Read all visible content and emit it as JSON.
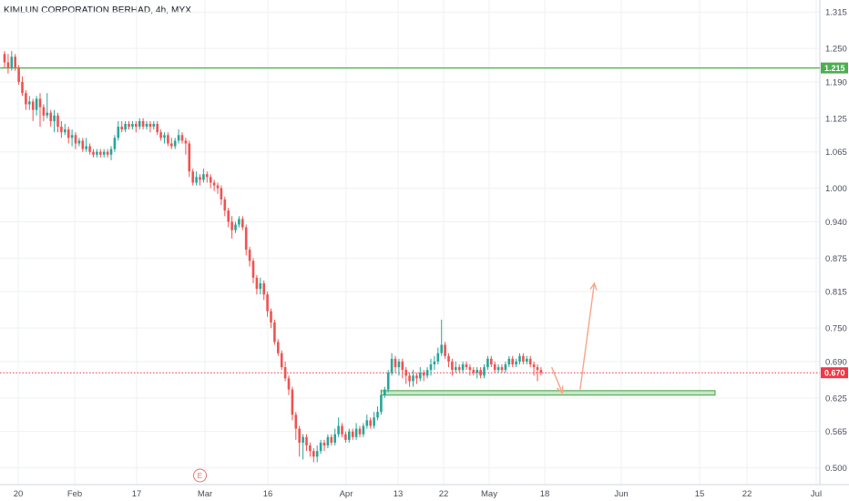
{
  "header": {
    "title": "KIMLUN CORPORATION BERHAD, 4h, MYX"
  },
  "colors": {
    "up": "#26a69a",
    "down": "#ef5350",
    "grid": "#eef0f3",
    "resistance": "#4caf50",
    "current": "#f23645",
    "zone_fill": "#c8e6c9",
    "zone_stroke": "#43a047",
    "arrow": "#f7a58a",
    "event_badge": "#e57373"
  },
  "chart_data": {
    "type": "candlestick",
    "title": "KIMLUN CORPORATION BERHAD, 4h, MYX",
    "xlabel": "",
    "ylabel": "",
    "ylim": [
      0.47,
      1.33
    ],
    "y_ticks": [
      "1.315",
      "1.250",
      "1.190",
      "1.125",
      "1.065",
      "1.000",
      "0.940",
      "0.875",
      "0.815",
      "0.750",
      "0.690",
      "0.625",
      "0.565",
      "0.500"
    ],
    "x_ticks": [
      "20",
      "Feb",
      "17",
      "Mar",
      "16",
      "Apr",
      "13",
      "22",
      "May",
      "18",
      "Jun",
      "15",
      "22",
      "Jul"
    ],
    "resistance_level": {
      "value": 1.215,
      "label": "1.215"
    },
    "current_price": {
      "value": 0.67,
      "label": "0.670"
    },
    "support_zone": {
      "top": 0.638,
      "bottom": 0.63,
      "start_bar": 106,
      "end_bar": 200
    },
    "event_marker": {
      "label": "E",
      "bar": 55
    },
    "projection_arrows": [
      {
        "from": [
          154,
          0.68
        ],
        "to": [
          157,
          0.634
        ]
      },
      {
        "from": [
          162,
          0.64
        ],
        "to": [
          166,
          0.83
        ]
      }
    ],
    "grid": true,
    "candles": [
      [
        1.24,
        1.225,
        1.245,
        1.215
      ],
      [
        1.225,
        1.215,
        1.24,
        1.205
      ],
      [
        1.215,
        1.235,
        1.245,
        1.21
      ],
      [
        1.235,
        1.215,
        1.24,
        1.21
      ],
      [
        1.215,
        1.19,
        1.22,
        1.185
      ],
      [
        1.19,
        1.17,
        1.2,
        1.165
      ],
      [
        1.17,
        1.15,
        1.175,
        1.14
      ],
      [
        1.15,
        1.155,
        1.165,
        1.14
      ],
      [
        1.155,
        1.14,
        1.16,
        1.12
      ],
      [
        1.14,
        1.16,
        1.165,
        1.13
      ],
      [
        1.16,
        1.145,
        1.17,
        1.11
      ],
      [
        1.145,
        1.13,
        1.15,
        1.12
      ],
      [
        1.13,
        1.135,
        1.17,
        1.125
      ],
      [
        1.135,
        1.12,
        1.14,
        1.11
      ],
      [
        1.12,
        1.13,
        1.14,
        1.1
      ],
      [
        1.13,
        1.11,
        1.135,
        1.1
      ],
      [
        1.11,
        1.1,
        1.12,
        1.09
      ],
      [
        1.1,
        1.105,
        1.115,
        1.095
      ],
      [
        1.105,
        1.09,
        1.11,
        1.08
      ],
      [
        1.09,
        1.095,
        1.105,
        1.075
      ],
      [
        1.095,
        1.08,
        1.1,
        1.07
      ],
      [
        1.08,
        1.085,
        1.09,
        1.075
      ],
      [
        1.085,
        1.07,
        1.09,
        1.065
      ],
      [
        1.07,
        1.075,
        1.09,
        1.065
      ],
      [
        1.075,
        1.065,
        1.08,
        1.06
      ],
      [
        1.065,
        1.06,
        1.07,
        1.055
      ],
      [
        1.06,
        1.065,
        1.07,
        1.055
      ],
      [
        1.065,
        1.06,
        1.07,
        1.055
      ],
      [
        1.06,
        1.065,
        1.07,
        1.055
      ],
      [
        1.065,
        1.06,
        1.07,
        1.055
      ],
      [
        1.06,
        1.07,
        1.075,
        1.05
      ],
      [
        1.07,
        1.09,
        1.095,
        1.065
      ],
      [
        1.09,
        1.11,
        1.12,
        1.085
      ],
      [
        1.11,
        1.105,
        1.12,
        1.1
      ],
      [
        1.105,
        1.115,
        1.12,
        1.1
      ],
      [
        1.115,
        1.11,
        1.12,
        1.105
      ],
      [
        1.11,
        1.115,
        1.12,
        1.105
      ],
      [
        1.115,
        1.11,
        1.12,
        1.1
      ],
      [
        1.11,
        1.12,
        1.125,
        1.105
      ],
      [
        1.12,
        1.11,
        1.125,
        1.105
      ],
      [
        1.11,
        1.115,
        1.12,
        1.105
      ],
      [
        1.115,
        1.11,
        1.12,
        1.1
      ],
      [
        1.11,
        1.115,
        1.12,
        1.105
      ],
      [
        1.115,
        1.1,
        1.12,
        1.095
      ],
      [
        1.1,
        1.09,
        1.105,
        1.085
      ],
      [
        1.09,
        1.095,
        1.1,
        1.08
      ],
      [
        1.095,
        1.08,
        1.1,
        1.075
      ],
      [
        1.08,
        1.075,
        1.09,
        1.07
      ],
      [
        1.075,
        1.085,
        1.09,
        1.07
      ],
      [
        1.085,
        1.095,
        1.105,
        1.08
      ],
      [
        1.095,
        1.085,
        1.1,
        1.08
      ],
      [
        1.085,
        1.08,
        1.09,
        1.06
      ],
      [
        1.08,
        1.03,
        1.085,
        1.02
      ],
      [
        1.03,
        1.01,
        1.035,
        1.005
      ],
      [
        1.01,
        1.02,
        1.03,
        1.005
      ],
      [
        1.02,
        1.015,
        1.025,
        1.005
      ],
      [
        1.015,
        1.025,
        1.035,
        1.01
      ],
      [
        1.025,
        1.02,
        1.03,
        1.01
      ],
      [
        1.02,
        1.01,
        1.025,
        1.0
      ],
      [
        1.01,
        1.005,
        1.015,
        0.995
      ],
      [
        1.005,
        1.0,
        1.01,
        0.99
      ],
      [
        1.0,
        0.98,
        1.005,
        0.97
      ],
      [
        0.98,
        0.96,
        0.985,
        0.95
      ],
      [
        0.96,
        0.94,
        0.965,
        0.93
      ],
      [
        0.94,
        0.925,
        0.95,
        0.91
      ],
      [
        0.925,
        0.935,
        0.94,
        0.92
      ],
      [
        0.935,
        0.945,
        0.95,
        0.93
      ],
      [
        0.945,
        0.93,
        0.95,
        0.925
      ],
      [
        0.93,
        0.89,
        0.935,
        0.88
      ],
      [
        0.89,
        0.87,
        0.895,
        0.86
      ],
      [
        0.87,
        0.84,
        0.875,
        0.83
      ],
      [
        0.84,
        0.82,
        0.845,
        0.81
      ],
      [
        0.82,
        0.83,
        0.84,
        0.81
      ],
      [
        0.83,
        0.81,
        0.835,
        0.8
      ],
      [
        0.81,
        0.78,
        0.815,
        0.77
      ],
      [
        0.78,
        0.76,
        0.785,
        0.75
      ],
      [
        0.76,
        0.725,
        0.765,
        0.72
      ],
      [
        0.725,
        0.705,
        0.73,
        0.7
      ],
      [
        0.705,
        0.68,
        0.71,
        0.675
      ],
      [
        0.68,
        0.66,
        0.69,
        0.655
      ],
      [
        0.66,
        0.64,
        0.665,
        0.63
      ],
      [
        0.64,
        0.595,
        0.645,
        0.585
      ],
      [
        0.595,
        0.57,
        0.6,
        0.55
      ],
      [
        0.57,
        0.545,
        0.575,
        0.52
      ],
      [
        0.545,
        0.555,
        0.56,
        0.515
      ],
      [
        0.555,
        0.54,
        0.56,
        0.53
      ],
      [
        0.54,
        0.53,
        0.545,
        0.52
      ],
      [
        0.53,
        0.52,
        0.535,
        0.51
      ],
      [
        0.52,
        0.53,
        0.54,
        0.51
      ],
      [
        0.53,
        0.545,
        0.55,
        0.525
      ],
      [
        0.545,
        0.54,
        0.55,
        0.53
      ],
      [
        0.54,
        0.555,
        0.56,
        0.535
      ],
      [
        0.555,
        0.545,
        0.56,
        0.54
      ],
      [
        0.545,
        0.56,
        0.57,
        0.54
      ],
      [
        0.56,
        0.575,
        0.59,
        0.555
      ],
      [
        0.575,
        0.56,
        0.58,
        0.555
      ],
      [
        0.56,
        0.55,
        0.565,
        0.545
      ],
      [
        0.55,
        0.565,
        0.57,
        0.545
      ],
      [
        0.565,
        0.555,
        0.57,
        0.55
      ],
      [
        0.555,
        0.57,
        0.58,
        0.55
      ],
      [
        0.57,
        0.56,
        0.575,
        0.555
      ],
      [
        0.56,
        0.575,
        0.58,
        0.555
      ],
      [
        0.575,
        0.585,
        0.595,
        0.57
      ],
      [
        0.585,
        0.575,
        0.59,
        0.57
      ],
      [
        0.575,
        0.59,
        0.6,
        0.57
      ],
      [
        0.59,
        0.6,
        0.61,
        0.585
      ],
      [
        0.6,
        0.63,
        0.64,
        0.595
      ],
      [
        0.63,
        0.64,
        0.645,
        0.625
      ],
      [
        0.64,
        0.67,
        0.675,
        0.635
      ],
      [
        0.67,
        0.695,
        0.705,
        0.665
      ],
      [
        0.695,
        0.68,
        0.7,
        0.67
      ],
      [
        0.68,
        0.69,
        0.695,
        0.665
      ],
      [
        0.69,
        0.675,
        0.695,
        0.66
      ],
      [
        0.675,
        0.665,
        0.68,
        0.65
      ],
      [
        0.665,
        0.655,
        0.67,
        0.645
      ],
      [
        0.655,
        0.665,
        0.675,
        0.645
      ],
      [
        0.665,
        0.66,
        0.67,
        0.65
      ],
      [
        0.66,
        0.67,
        0.68,
        0.655
      ],
      [
        0.67,
        0.665,
        0.675,
        0.655
      ],
      [
        0.665,
        0.675,
        0.68,
        0.66
      ],
      [
        0.675,
        0.685,
        0.695,
        0.665
      ],
      [
        0.685,
        0.69,
        0.7,
        0.675
      ],
      [
        0.69,
        0.705,
        0.715,
        0.685
      ],
      [
        0.705,
        0.72,
        0.765,
        0.7
      ],
      [
        0.72,
        0.7,
        0.725,
        0.695
      ],
      [
        0.7,
        0.69,
        0.705,
        0.68
      ],
      [
        0.69,
        0.675,
        0.695,
        0.665
      ],
      [
        0.675,
        0.68,
        0.69,
        0.67
      ],
      [
        0.68,
        0.675,
        0.685,
        0.67
      ],
      [
        0.675,
        0.685,
        0.69,
        0.67
      ],
      [
        0.685,
        0.68,
        0.69,
        0.675
      ],
      [
        0.68,
        0.675,
        0.685,
        0.665
      ],
      [
        0.675,
        0.67,
        0.68,
        0.665
      ],
      [
        0.67,
        0.675,
        0.68,
        0.66
      ],
      [
        0.675,
        0.665,
        0.68,
        0.66
      ],
      [
        0.665,
        0.68,
        0.685,
        0.66
      ],
      [
        0.68,
        0.695,
        0.7,
        0.675
      ],
      [
        0.695,
        0.685,
        0.7,
        0.68
      ],
      [
        0.685,
        0.675,
        0.69,
        0.67
      ],
      [
        0.675,
        0.68,
        0.685,
        0.67
      ],
      [
        0.68,
        0.675,
        0.685,
        0.67
      ],
      [
        0.675,
        0.685,
        0.69,
        0.67
      ],
      [
        0.685,
        0.695,
        0.7,
        0.68
      ],
      [
        0.695,
        0.685,
        0.7,
        0.68
      ],
      [
        0.685,
        0.69,
        0.695,
        0.68
      ],
      [
        0.69,
        0.7,
        0.705,
        0.685
      ],
      [
        0.7,
        0.69,
        0.705,
        0.685
      ],
      [
        0.69,
        0.695,
        0.7,
        0.685
      ],
      [
        0.695,
        0.685,
        0.7,
        0.68
      ],
      [
        0.685,
        0.68,
        0.69,
        0.665
      ],
      [
        0.68,
        0.675,
        0.685,
        0.655
      ],
      [
        0.675,
        0.67,
        0.68,
        0.665
      ]
    ]
  }
}
